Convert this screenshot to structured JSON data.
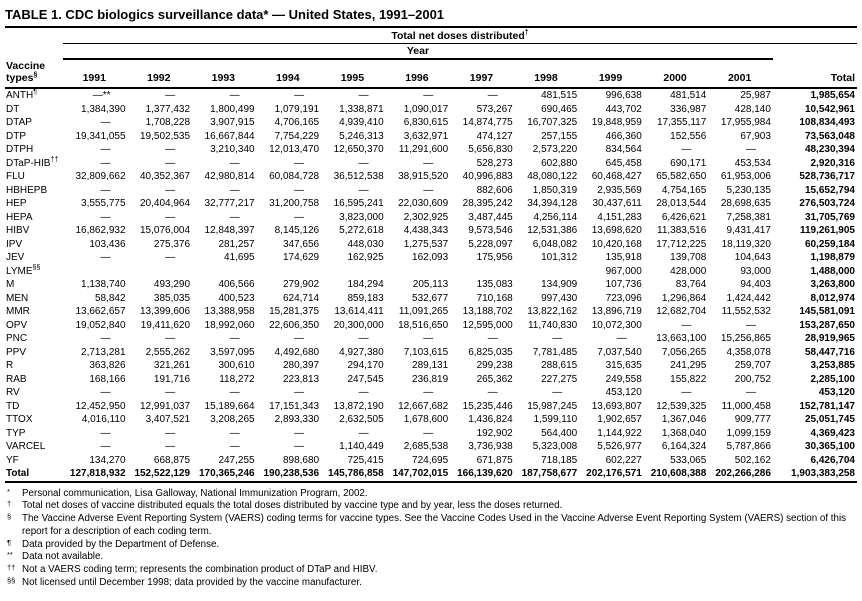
{
  "title": "TABLE 1. CDC biologics surveillance data* — United States, 1991–2001",
  "table": {
    "group_header": "Total net doses distributed",
    "group_header_sup": "†",
    "year_header": "Year",
    "row_header_line1": "Vaccine",
    "row_header_line2": "types",
    "row_header_sup": "§",
    "columns": [
      "1991",
      "1992",
      "1993",
      "1994",
      "1995",
      "1996",
      "1997",
      "1998",
      "1999",
      "2000",
      "2001",
      "Total"
    ],
    "rows": [
      {
        "label": "ANTH",
        "sup": "¶",
        "values": [
          "—**",
          "—",
          "—",
          "—",
          "—",
          "—",
          "—",
          "481,515",
          "996,638",
          "481,514",
          "25,987",
          "1,985,654"
        ]
      },
      {
        "label": "DT",
        "sup": "",
        "values": [
          "1,384,390",
          "1,377,432",
          "1,800,499",
          "1,079,191",
          "1,338,871",
          "1,090,017",
          "573,267",
          "690,465",
          "443,702",
          "336,987",
          "428,140",
          "10,542,961"
        ]
      },
      {
        "label": "DTAP",
        "sup": "",
        "values": [
          "—",
          "1,708,228",
          "3,907,915",
          "4,706,165",
          "4,939,410",
          "6,830,615",
          "14,874,775",
          "16,707,325",
          "19,848,959",
          "17,355,117",
          "17,955,984",
          "108,834,493"
        ]
      },
      {
        "label": "DTP",
        "sup": "",
        "values": [
          "19,341,055",
          "19,502,535",
          "16,667,844",
          "7,754,229",
          "5,246,313",
          "3,632,971",
          "474,127",
          "257,155",
          "466,360",
          "152,556",
          "67,903",
          "73,563,048"
        ]
      },
      {
        "label": "DTPH",
        "sup": "",
        "values": [
          "—",
          "—",
          "3,210,340",
          "12,013,470",
          "12,650,370",
          "11,291,600",
          "5,656,830",
          "2,573,220",
          "834,564",
          "—",
          "—",
          "48,230,394"
        ]
      },
      {
        "label": "DTaP-HIB",
        "sup": "††",
        "values": [
          "—",
          "—",
          "—",
          "—",
          "—",
          "—",
          "528,273",
          "602,880",
          "645,458",
          "690,171",
          "453,534",
          "2,920,316"
        ]
      },
      {
        "label": "FLU",
        "sup": "",
        "values": [
          "32,809,662",
          "40,352,367",
          "42,980,814",
          "60,084,728",
          "36,512,538",
          "38,915,520",
          "40,996,883",
          "48,080,122",
          "60,468,427",
          "65,582,650",
          "61,953,006",
          "528,736,717"
        ]
      },
      {
        "label": "HBHEPB",
        "sup": "",
        "values": [
          "—",
          "—",
          "—",
          "—",
          "—",
          "—",
          "882,606",
          "1,850,319",
          "2,935,569",
          "4,754,165",
          "5,230,135",
          "15,652,794"
        ]
      },
      {
        "label": "HEP",
        "sup": "",
        "values": [
          "3,555,775",
          "20,404,964",
          "32,777,217",
          "31,200,758",
          "16,595,241",
          "22,030,609",
          "28,395,242",
          "34,394,128",
          "30,437,611",
          "28,013,544",
          "28,698,635",
          "276,503,724"
        ]
      },
      {
        "label": "HEPA",
        "sup": "",
        "values": [
          "—",
          "—",
          "—",
          "—",
          "3,823,000",
          "2,302,925",
          "3,487,445",
          "4,256,114",
          "4,151,283",
          "6,426,621",
          "7,258,381",
          "31,705,769"
        ]
      },
      {
        "label": "HIBV",
        "sup": "",
        "values": [
          "16,862,932",
          "15,076,004",
          "12,848,397",
          "8,145,126",
          "5,272,618",
          "4,438,343",
          "9,573,546",
          "12,531,386",
          "13,698,620",
          "11,383,516",
          "9,431,417",
          "119,261,905"
        ]
      },
      {
        "label": "IPV",
        "sup": "",
        "values": [
          "103,436",
          "275,376",
          "281,257",
          "347,656",
          "448,030",
          "1,275,537",
          "5,228,097",
          "6,048,082",
          "10,420,168",
          "17,712,225",
          "18,119,320",
          "60,259,184"
        ]
      },
      {
        "label": "JEV",
        "sup": "",
        "values": [
          "—",
          "—",
          "41,695",
          "174,629",
          "162,925",
          "162,093",
          "175,956",
          "101,312",
          "135,918",
          "139,708",
          "104,643",
          "1,198,879"
        ]
      },
      {
        "label": "LYME",
        "sup": "§§",
        "values": [
          "",
          "",
          "",
          "",
          "",
          "",
          "",
          "",
          "967,000",
          "428,000",
          "93,000",
          "1,488,000"
        ]
      },
      {
        "label": "M",
        "sup": "",
        "values": [
          "1,138,740",
          "493,290",
          "406,566",
          "279,902",
          "184,294",
          "205,113",
          "135,083",
          "134,909",
          "107,736",
          "83,764",
          "94,403",
          "3,263,800"
        ]
      },
      {
        "label": "MEN",
        "sup": "",
        "values": [
          "58,842",
          "385,035",
          "400,523",
          "624,714",
          "859,183",
          "532,677",
          "710,168",
          "997,430",
          "723,096",
          "1,296,864",
          "1,424,442",
          "8,012,974"
        ]
      },
      {
        "label": "MMR",
        "sup": "",
        "values": [
          "13,662,657",
          "13,399,606",
          "13,388,958",
          "15,281,375",
          "13,614,411",
          "11,091,265",
          "13,188,702",
          "13,822,162",
          "13,896,719",
          "12,682,704",
          "11,552,532",
          "145,581,091"
        ]
      },
      {
        "label": "OPV",
        "sup": "",
        "values": [
          "19,052,840",
          "19,411,620",
          "18,992,060",
          "22,606,350",
          "20,300,000",
          "18,516,650",
          "12,595,000",
          "11,740,830",
          "10,072,300",
          "—",
          "—",
          "153,287,650"
        ]
      },
      {
        "label": "PNC",
        "sup": "",
        "values": [
          "—",
          "—",
          "—",
          "—",
          "—",
          "—",
          "—",
          "—",
          "—",
          "13,663,100",
          "15,256,865",
          "28,919,965"
        ]
      },
      {
        "label": "PPV",
        "sup": "",
        "values": [
          "2,713,281",
          "2,555,262",
          "3,597,095",
          "4,492,680",
          "4,927,380",
          "7,103,615",
          "6,825,035",
          "7,781,485",
          "7,037,540",
          "7,056,265",
          "4,358,078",
          "58,447,716"
        ]
      },
      {
        "label": "R",
        "sup": "",
        "values": [
          "363,826",
          "321,261",
          "300,610",
          "280,397",
          "294,170",
          "289,131",
          "299,238",
          "288,615",
          "315,635",
          "241,295",
          "259,707",
          "3,253,885"
        ]
      },
      {
        "label": "RAB",
        "sup": "",
        "values": [
          "168,166",
          "191,716",
          "118,272",
          "223,813",
          "247,545",
          "236,819",
          "265,362",
          "227,275",
          "249,558",
          "155,822",
          "200,752",
          "2,285,100"
        ]
      },
      {
        "label": "RV",
        "sup": "",
        "values": [
          "—",
          "—",
          "—",
          "—",
          "—",
          "—",
          "—",
          "—",
          "453,120",
          "—",
          "—",
          "453,120"
        ]
      },
      {
        "label": "TD",
        "sup": "",
        "values": [
          "12,452,950",
          "12,991,037",
          "15,189,664",
          "17,151,343",
          "13,872,190",
          "12,667,682",
          "15,235,446",
          "15,987,245",
          "13,693,807",
          "12,539,325",
          "11,000,458",
          "152,781,147"
        ]
      },
      {
        "label": "TTOX",
        "sup": "",
        "values": [
          "4,016,110",
          "3,407,521",
          "3,208,265",
          "2,893,330",
          "2,632,505",
          "1,678,600",
          "1,436,824",
          "1,599,110",
          "1,902,657",
          "1,367,046",
          "909,777",
          "25,051,745"
        ]
      },
      {
        "label": "TYP",
        "sup": "",
        "values": [
          "—",
          "—",
          "—",
          "—",
          "—",
          "—",
          "192,902",
          "564,400",
          "1,144,922",
          "1,368,040",
          "1,099,159",
          "4,369,423"
        ]
      },
      {
        "label": "VARCEL",
        "sup": "",
        "values": [
          "—",
          "—",
          "—",
          "—",
          "1,140,449",
          "2,685,538",
          "3,736,938",
          "5,323,008",
          "5,526,977",
          "6,164,324",
          "5,787,866",
          "30,365,100"
        ]
      },
      {
        "label": "YF",
        "sup": "",
        "values": [
          "134,270",
          "668,875",
          "247,255",
          "898,680",
          "725,415",
          "724,695",
          "671,875",
          "718,185",
          "602,227",
          "533,065",
          "502,162",
          "6,426,704"
        ]
      },
      {
        "label": "Total",
        "sup": "",
        "bold": true,
        "values": [
          "127,818,932",
          "152,522,129",
          "170,365,246",
          "190,238,536",
          "145,786,858",
          "147,702,015",
          "166,139,620",
          "187,758,677",
          "202,176,571",
          "210,608,388",
          "202,266,286",
          "1,903,383,258"
        ]
      }
    ]
  },
  "footnotes": [
    {
      "marker": "*",
      "text": "Personal communication, Lisa Galloway, National Immunization Program, 2002."
    },
    {
      "marker": "†",
      "text": "Total net doses of vaccine distributed equals the total doses distributed by vaccine type and by year, less the doses returned."
    },
    {
      "marker": "§",
      "text": "The Vaccine Adverse Event Reporting System (VAERS) coding terms for vaccine types. See the Vaccine Codes Used in the Vaccine Adverse Event Reporting System (VAERS) section of this report for a description of each coding term."
    },
    {
      "marker": "¶",
      "text": "Data provided by the Department of Defense."
    },
    {
      "marker": "**",
      "text": "Data not available."
    },
    {
      "marker": "††",
      "text": "Not a VAERS coding term; represents the combination product of DTaP and HIBV."
    },
    {
      "marker": "§§",
      "text": "Not licensed until December 1998; data provided by the vaccine manufacturer."
    }
  ]
}
